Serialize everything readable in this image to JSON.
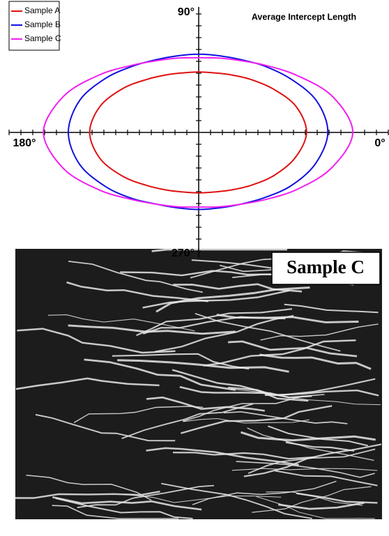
{
  "chart_data": {
    "type": "polar",
    "title": "Average Intercept Length",
    "angles": [
      0,
      15,
      30,
      45,
      60,
      75,
      90,
      105,
      120,
      135,
      150,
      165,
      180,
      195,
      210,
      225,
      240,
      255,
      270,
      285,
      300,
      315,
      330,
      345
    ],
    "angle_ticks": [
      {
        "value": 0,
        "label": "0°"
      },
      {
        "value": 90,
        "label": "90°"
      },
      {
        "value": 180,
        "label": "180°"
      },
      {
        "value": 270,
        "label": "270°"
      }
    ],
    "rlim": [
      0,
      16
    ],
    "rticks": [
      1,
      2,
      3,
      4,
      5,
      6,
      7,
      8,
      9,
      10,
      11,
      12,
      13,
      14,
      15,
      16
    ],
    "legend": "top-left",
    "series": [
      {
        "name": "Sample A",
        "color": "#e01010",
        "values": [
          9.1,
          8.5,
          7.3,
          6.3,
          5.6,
          5.2,
          5.1,
          5.2,
          5.6,
          6.3,
          7.4,
          8.6,
          9.2,
          8.6,
          7.4,
          6.3,
          5.6,
          5.2,
          5.1,
          5.2,
          5.6,
          6.3,
          7.3,
          8.4
        ]
      },
      {
        "name": "Sample B",
        "color": "#1010e0",
        "values": [
          10.9,
          10.3,
          9.0,
          7.9,
          7.1,
          6.7,
          6.6,
          6.7,
          7.1,
          7.9,
          9.1,
          10.4,
          11.0,
          10.4,
          9.1,
          7.9,
          7.0,
          6.6,
          6.5,
          6.6,
          7.0,
          7.8,
          9.0,
          10.2
        ]
      },
      {
        "name": "Sample C",
        "color": "#f020f0",
        "values": [
          13.0,
          11.7,
          9.6,
          8.0,
          7.0,
          6.5,
          6.3,
          6.5,
          7.0,
          8.0,
          9.7,
          11.8,
          13.1,
          11.8,
          9.7,
          8.0,
          7.0,
          6.5,
          6.3,
          6.5,
          7.0,
          8.0,
          9.6,
          11.6
        ]
      }
    ]
  },
  "image": {
    "label": "Sample C"
  }
}
